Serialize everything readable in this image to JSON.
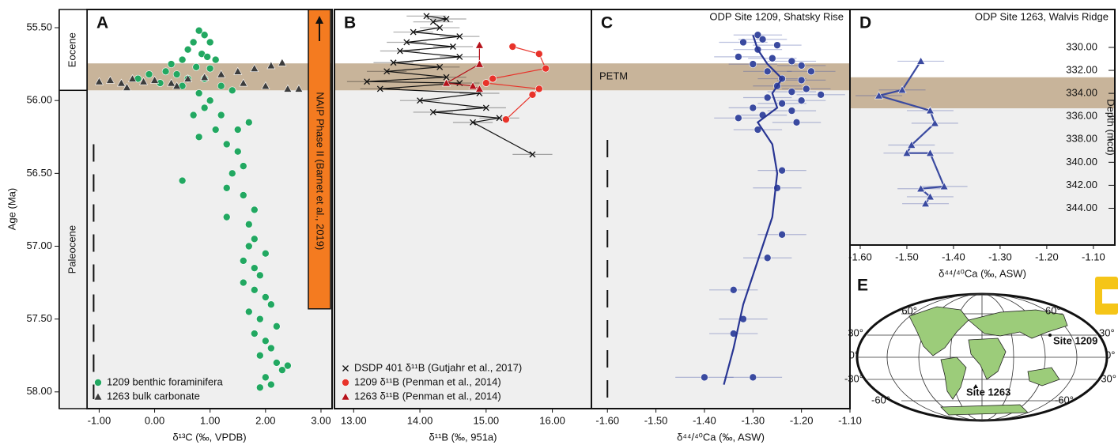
{
  "chart_data": [
    {
      "panel": "A",
      "type": "scatter",
      "ylabel": "Age (Ma)",
      "xlabel": "δ¹³C (‰, VPDB)",
      "xlim": [
        -1.22,
        3.2
      ],
      "xticks": [
        {
          "value": -1,
          "label": "-1.00"
        },
        {
          "value": 0,
          "label": "0.00"
        },
        {
          "value": 1,
          "label": "1.00"
        },
        {
          "value": 2,
          "label": "2.00"
        },
        {
          "value": 3,
          "label": "3.00"
        }
      ],
      "ylim": [
        55.375,
        58.115
      ],
      "y_inverted": true,
      "yaxis": "left",
      "yticks": [
        {
          "value": 55.5,
          "label": "55.50"
        },
        {
          "value": 56,
          "label": "56.00"
        },
        {
          "value": 56.5,
          "label": "56.50"
        },
        {
          "value": 57,
          "label": "57.00"
        },
        {
          "value": 57.5,
          "label": "57.50"
        },
        {
          "value": 58,
          "label": "58.00"
        }
      ],
      "epochs": [
        "Eocene",
        "Paleocene"
      ],
      "shade_below": 55.93,
      "petm": [
        55.745,
        55.93
      ],
      "annotation": {
        "text": "NAIP Phase II (Barnet et al., 2019)",
        "y": [
          55.375,
          57.43
        ]
      },
      "dashed": {
        "x": -1.1,
        "y": [
          56.3,
          58.05
        ]
      },
      "legend": "lower left",
      "series": [
        {
          "name": "1209 benthic foraminifera",
          "color": "#22a861",
          "marker": "circle",
          "x": [
            0.8,
            0.9,
            1.0,
            0.7,
            0.6,
            0.85,
            0.95,
            0.5,
            1.1,
            0.3,
            0.75,
            1.0,
            0.2,
            -0.1,
            0.4,
            0.6,
            0.9,
            -0.3,
            0.1,
            0.5,
            1.2,
            1.4,
            0.8,
            1.0,
            0.9,
            1.2,
            0.7,
            1.1,
            0.8,
            1.7,
            1.5,
            1.3,
            1.5,
            1.6,
            1.4,
            0.5,
            1.3,
            1.6,
            1.8,
            1.3,
            1.7,
            1.8,
            1.7,
            2.0,
            1.6,
            1.8,
            1.9,
            1.6,
            1.8,
            2.0,
            2.1,
            1.7,
            1.9,
            2.2,
            1.8,
            2.0,
            2.1,
            1.9,
            2.2,
            2.3,
            2.0,
            2.1,
            1.9,
            2.4
          ],
          "y": [
            55.52,
            55.55,
            55.6,
            55.6,
            55.65,
            55.68,
            55.7,
            55.72,
            55.72,
            55.75,
            55.77,
            55.78,
            55.8,
            55.82,
            55.82,
            55.85,
            55.85,
            55.85,
            55.88,
            55.9,
            55.9,
            55.93,
            55.95,
            56.0,
            56.05,
            56.1,
            56.1,
            56.2,
            56.25,
            56.15,
            56.2,
            56.3,
            56.35,
            56.45,
            56.5,
            56.55,
            56.6,
            56.65,
            56.75,
            56.8,
            56.85,
            56.95,
            57.0,
            57.05,
            57.1,
            57.15,
            57.2,
            57.25,
            57.3,
            57.35,
            57.4,
            57.45,
            57.5,
            57.55,
            57.6,
            57.65,
            57.7,
            57.75,
            57.8,
            57.85,
            57.9,
            57.95,
            57.97,
            57.82
          ]
        },
        {
          "name": "1263 bulk carbonate",
          "color": "#3c3c3c",
          "marker": "triangle",
          "x": [
            -1.0,
            -0.8,
            -0.6,
            -0.4,
            -0.2,
            0.0,
            0.3,
            0.6,
            0.9,
            1.2,
            1.5,
            1.8,
            2.1,
            2.3,
            1.6,
            2.0,
            2.4,
            2.6,
            0.4,
            -0.5
          ],
          "y": [
            55.87,
            55.86,
            55.88,
            55.85,
            55.87,
            55.86,
            55.88,
            55.85,
            55.84,
            55.82,
            55.8,
            55.78,
            55.76,
            55.74,
            55.88,
            55.9,
            55.92,
            55.92,
            55.9,
            55.91
          ]
        }
      ]
    },
    {
      "panel": "B",
      "type": "line",
      "xlabel": "δ¹¹B (‰, 951a)",
      "xlim": [
        12.71,
        16.59
      ],
      "xticks": [
        {
          "value": 13,
          "label": "13.00"
        },
        {
          "value": 14,
          "label": "14.00"
        },
        {
          "value": 15,
          "label": "15.00"
        },
        {
          "value": 16,
          "label": "16.00"
        }
      ],
      "ylim": [
        55.375,
        58.115
      ],
      "y_inverted": true,
      "shade_below": 55.93,
      "petm": [
        55.745,
        55.93
      ],
      "legend": "lower left",
      "series": [
        {
          "name": "DSDP 401 δ¹¹B (Gutjahr et al., 2017)",
          "color": "#111111",
          "marker": "x",
          "line": true,
          "x": [
            14.1,
            14.4,
            14.2,
            14.3,
            13.9,
            14.6,
            13.8,
            14.5,
            13.7,
            14.6,
            13.6,
            14.3,
            13.5,
            14.4,
            13.2,
            14.6,
            13.4,
            14.9,
            14.0,
            15.0,
            14.2,
            15.2,
            14.8,
            15.7
          ],
          "y": [
            55.42,
            55.44,
            55.46,
            55.5,
            55.53,
            55.56,
            55.6,
            55.63,
            55.66,
            55.7,
            55.74,
            55.77,
            55.8,
            55.84,
            55.87,
            55.88,
            55.92,
            55.95,
            56.0,
            56.05,
            56.08,
            56.12,
            56.15,
            56.37
          ],
          "xerr": [
            0.3,
            0.3,
            0.3,
            0.3,
            0.3,
            0.3,
            0.3,
            0.3,
            0.3,
            0.3,
            0.3,
            0.3,
            0.3,
            0.3,
            0.3,
            0.3,
            0.3,
            0.3,
            0.3,
            0.3,
            0.3,
            0.3,
            0.3,
            0.3
          ]
        },
        {
          "name": "1209 δ¹¹B (Penman et al., 2014)",
          "color": "#e8332a",
          "marker": "circle",
          "line": true,
          "x": [
            15.4,
            15.8,
            15.9,
            15.1,
            15.0,
            15.8,
            15.7,
            15.3
          ],
          "y": [
            55.63,
            55.68,
            55.78,
            55.85,
            55.88,
            55.92,
            55.96,
            56.13
          ]
        },
        {
          "name": "1263 δ¹¹B (Penman et al., 2014)",
          "color": "#b5121b",
          "marker": "triangle",
          "line": true,
          "x": [
            14.9,
            14.9,
            14.4,
            14.8,
            14.9
          ],
          "y": [
            55.62,
            55.75,
            55.88,
            55.9,
            55.92
          ]
        }
      ]
    },
    {
      "panel": "C",
      "type": "line",
      "title": "ODP Site 1209, Shatsky Rise",
      "xlabel": "δ⁴⁴/⁴⁰Ca (‰, ASW)",
      "band_label": "PETM",
      "xlim": [
        -1.633,
        -1.1
      ],
      "xticks": [
        {
          "value": -1.6,
          "label": "-1.60"
        },
        {
          "value": -1.5,
          "label": "-1.50"
        },
        {
          "value": -1.4,
          "label": "-1.40"
        },
        {
          "value": -1.3,
          "label": "-1.30"
        },
        {
          "value": -1.2,
          "label": "-1.20"
        },
        {
          "value": -1.1,
          "label": "-1.10"
        }
      ],
      "ylim": [
        55.375,
        58.115
      ],
      "y_inverted": true,
      "shade_below": 55.93,
      "petm": [
        55.745,
        55.93
      ],
      "dashed": {
        "x": -1.6,
        "y": [
          56.27,
          58.05
        ]
      },
      "series": [
        {
          "color": "#3a4aa0",
          "marker": "circle",
          "x": [
            -1.29,
            -1.28,
            -1.32,
            -1.25,
            -1.29,
            -1.33,
            -1.26,
            -1.22,
            -1.3,
            -1.2,
            -1.27,
            -1.18,
            -1.24,
            -1.2,
            -1.25,
            -1.19,
            -1.22,
            -1.16,
            -1.27,
            -1.2,
            -1.24,
            -1.3,
            -1.22,
            -1.28,
            -1.33,
            -1.21,
            -1.29,
            -1.24,
            -1.25,
            -1.24,
            -1.27,
            -1.34,
            -1.32,
            -1.34,
            -1.4,
            -1.3
          ],
          "y": [
            55.55,
            55.58,
            55.6,
            55.62,
            55.65,
            55.7,
            55.71,
            55.73,
            55.75,
            55.76,
            55.8,
            55.8,
            55.85,
            55.86,
            55.9,
            55.92,
            55.94,
            55.96,
            55.98,
            56.0,
            56.02,
            56.05,
            56.07,
            56.1,
            56.12,
            56.15,
            56.2,
            56.48,
            56.6,
            56.92,
            57.08,
            57.3,
            57.5,
            57.6,
            57.9,
            57.9
          ],
          "xerr": [
            0.05,
            0.05,
            0.05,
            0.05,
            0.05,
            0.05,
            0.05,
            0.05,
            0.05,
            0.05,
            0.05,
            0.05,
            0.05,
            0.05,
            0.05,
            0.05,
            0.05,
            0.05,
            0.05,
            0.05,
            0.05,
            0.05,
            0.05,
            0.05,
            0.05,
            0.05,
            0.05,
            0.05,
            0.05,
            0.05,
            0.05,
            0.05,
            0.05,
            0.05,
            0.06,
            0.06
          ]
        },
        {
          "color": "#283593",
          "marker": "none",
          "line": true,
          "x": [
            -1.3,
            -1.29,
            -1.27,
            -1.24,
            -1.26,
            -1.25,
            -1.29,
            -1.26,
            -1.25,
            -1.26,
            -1.29,
            -1.32,
            -1.34,
            -1.36
          ],
          "y": [
            55.55,
            55.65,
            55.75,
            55.85,
            55.95,
            56.05,
            56.15,
            56.3,
            56.5,
            56.8,
            57.1,
            57.4,
            57.7,
            57.95
          ]
        }
      ]
    },
    {
      "panel": "D",
      "type": "line",
      "title": "ODP Site 1263, Walvis Ridge",
      "xlabel": "δ⁴⁴/⁴⁰Ca (‰, ASW)",
      "ylabel": "Depth (mcd)",
      "xlim": [
        -1.622,
        -1.054
      ],
      "xticks": [
        {
          "value": -1.6,
          "label": "-1.60"
        },
        {
          "value": -1.5,
          "label": "-1.50"
        },
        {
          "value": -1.4,
          "label": "-1.40"
        },
        {
          "value": -1.3,
          "label": "-1.30"
        },
        {
          "value": -1.2,
          "label": "-1.20"
        },
        {
          "value": -1.1,
          "label": "-1.10"
        }
      ],
      "ylim": [
        326.7,
        347.2
      ],
      "y_inverted": true,
      "yaxis": "right",
      "yticks": [
        {
          "value": 330,
          "label": "330.00"
        },
        {
          "value": 332,
          "label": "332.00"
        },
        {
          "value": 334,
          "label": "334.00"
        },
        {
          "value": 336,
          "label": "336.00"
        },
        {
          "value": 338,
          "label": "338.00"
        },
        {
          "value": 340,
          "label": "340.00"
        },
        {
          "value": 342,
          "label": "342.00"
        },
        {
          "value": 344,
          "label": "344.00"
        }
      ],
      "shade_below": 335.3,
      "petm": [
        332.6,
        335.3
      ],
      "series": [
        {
          "color": "#3a4aa0",
          "marker": "triangle",
          "line": true,
          "x": [
            -1.47,
            -1.51,
            -1.56,
            -1.45,
            -1.44,
            -1.49,
            -1.5,
            -1.45,
            -1.42,
            -1.47,
            -1.45,
            -1.46
          ],
          "y": [
            331.2,
            333.7,
            334.2,
            335.5,
            336.6,
            338.5,
            339.2,
            339.2,
            342.1,
            342.3,
            343.0,
            343.6
          ],
          "xerr": [
            0.05,
            0.05,
            0.05,
            0.05,
            0.05,
            0.05,
            0.05,
            0.05,
            0.05,
            0.05,
            0.05,
            0.05
          ]
        }
      ]
    }
  ],
  "map": {
    "panel": "E",
    "sites": [
      "Site 1209",
      "Site 1263"
    ],
    "latitudes": [
      "60°",
      "30°",
      "0°",
      "-30°",
      "-60°"
    ]
  }
}
